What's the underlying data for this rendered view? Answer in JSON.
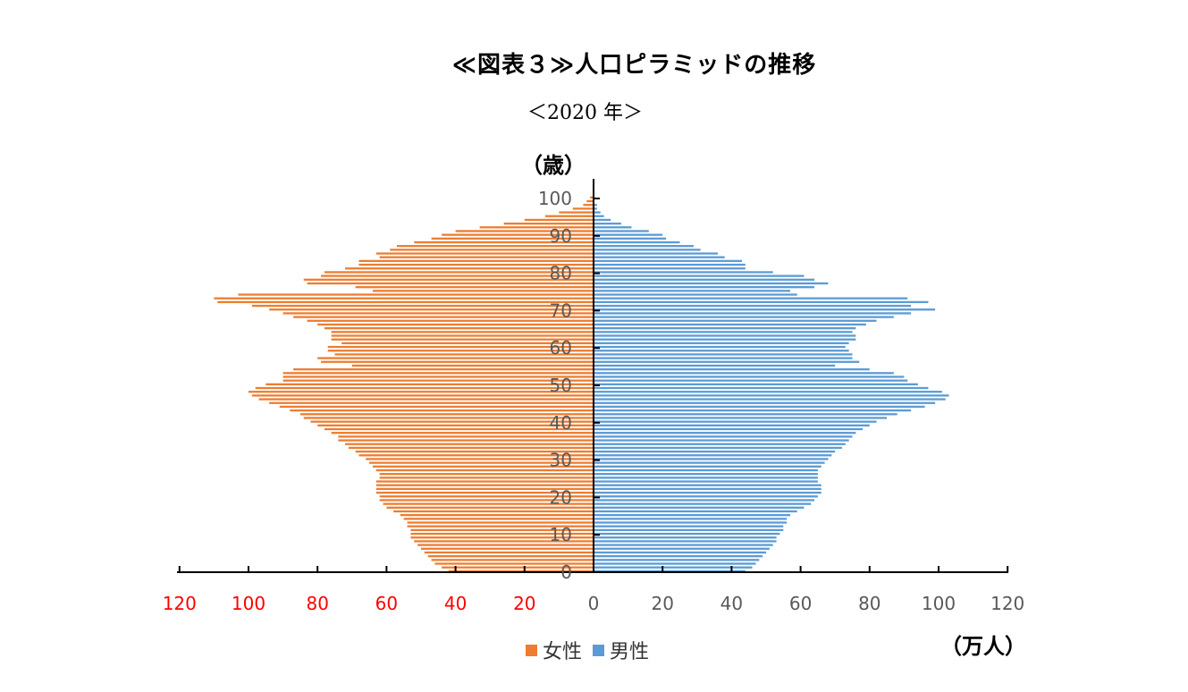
{
  "title": "≪図表３≫人口ピラミッドの推移",
  "subtitle": "＜2020 年＞",
  "y_unit": "（歳）",
  "x_unit": "（万人）",
  "legend": {
    "female": "女性",
    "male": "男性"
  },
  "colors": {
    "female": "#ED7D31",
    "male": "#5B9BD5",
    "negative_tick": "#FF0000",
    "tick": "#595959"
  },
  "chart_data": {
    "type": "bar",
    "orientation": "horizontal",
    "title": "≪図表３≫人口ピラミッドの推移",
    "subtitle": "＜2020 年＞",
    "ylabel": "（歳）",
    "xlabel": "（万人）",
    "x_tick_labels": [
      "120",
      "100",
      "80",
      "60",
      "40",
      "20",
      "0",
      "20",
      "40",
      "60",
      "80",
      "100",
      "120"
    ],
    "y_tick_labels": [
      "0",
      "10",
      "20",
      "30",
      "40",
      "50",
      "60",
      "70",
      "80",
      "90",
      "100"
    ],
    "xlim": [
      -120,
      120
    ],
    "ylim": [
      0,
      100
    ],
    "legend_position": "bottom",
    "categories": [
      0,
      1,
      2,
      3,
      4,
      5,
      6,
      7,
      8,
      9,
      10,
      11,
      12,
      13,
      14,
      15,
      16,
      17,
      18,
      19,
      20,
      21,
      22,
      23,
      24,
      25,
      26,
      27,
      28,
      29,
      30,
      31,
      32,
      33,
      34,
      35,
      36,
      37,
      38,
      39,
      40,
      41,
      42,
      43,
      44,
      45,
      46,
      47,
      48,
      49,
      50,
      51,
      52,
      53,
      54,
      55,
      56,
      57,
      58,
      59,
      60,
      61,
      62,
      63,
      64,
      65,
      66,
      67,
      68,
      69,
      70,
      71,
      72,
      73,
      74,
      75,
      76,
      77,
      78,
      79,
      80,
      81,
      82,
      83,
      84,
      85,
      86,
      87,
      88,
      89,
      90,
      91,
      92,
      93,
      94,
      95,
      96,
      97,
      98,
      99,
      100
    ],
    "series": [
      {
        "name": "女性",
        "values": [
          42,
          44,
          46,
          47,
          48,
          49,
          50,
          51,
          52,
          53,
          53,
          53,
          54,
          54,
          55,
          56,
          58,
          60,
          61,
          62,
          62,
          63,
          63,
          63,
          63,
          62,
          62,
          63,
          64,
          65,
          66,
          68,
          69,
          71,
          72,
          74,
          74,
          76,
          78,
          80,
          82,
          84,
          85,
          88,
          91,
          94,
          97,
          99,
          100,
          98,
          95,
          90,
          90,
          90,
          87,
          70,
          79,
          80,
          75,
          77,
          77,
          73,
          76,
          76,
          76,
          78,
          80,
          83,
          87,
          90,
          94,
          99,
          109,
          110,
          103,
          64,
          69,
          83,
          84,
          79,
          78,
          72,
          68,
          68,
          62,
          63,
          59,
          57,
          52,
          47,
          44,
          40,
          33,
          26,
          20,
          14,
          10,
          6,
          3,
          2,
          1
        ]
      },
      {
        "name": "男性",
        "values": [
          44,
          46,
          47,
          48,
          49,
          50,
          51,
          52,
          53,
          53,
          54,
          55,
          55,
          56,
          56,
          57,
          59,
          61,
          63,
          64,
          65,
          66,
          66,
          66,
          65,
          65,
          65,
          65,
          66,
          67,
          68,
          69,
          70,
          72,
          73,
          74,
          75,
          76,
          78,
          80,
          82,
          85,
          88,
          92,
          96,
          99,
          102,
          103,
          101,
          97,
          94,
          91,
          90,
          87,
          80,
          70,
          77,
          75,
          75,
          74,
          73,
          74,
          76,
          76,
          75,
          76,
          79,
          82,
          87,
          92,
          99,
          92,
          97,
          91,
          59,
          57,
          64,
          68,
          64,
          61,
          52,
          44,
          44,
          43,
          38,
          36,
          31,
          29,
          25,
          21,
          20,
          16,
          11,
          8,
          5,
          3,
          2,
          1,
          1,
          0,
          0
        ]
      }
    ]
  }
}
